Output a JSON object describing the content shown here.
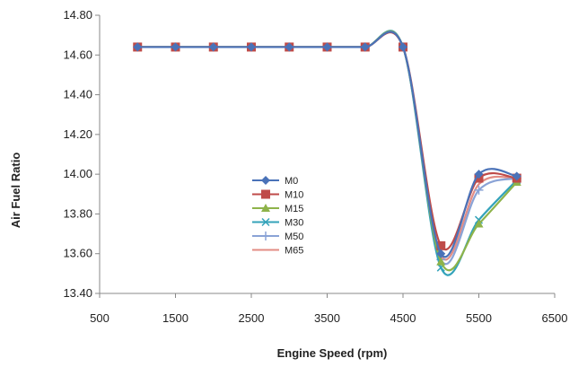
{
  "chart_data": {
    "type": "line",
    "title": "",
    "xlabel": "Engine Speed (rpm)",
    "ylabel": "Air Fuel Ratio",
    "xlim": [
      500,
      6500
    ],
    "ylim": [
      13.4,
      14.8
    ],
    "xticks": [
      500,
      1500,
      2500,
      3500,
      4500,
      5500,
      6500
    ],
    "xtick_labels": [
      "500",
      "1500",
      "2500",
      "3500",
      "4500",
      "5500",
      "6500"
    ],
    "yticks": [
      13.4,
      13.6,
      13.8,
      14.0,
      14.2,
      14.4,
      14.6,
      14.8
    ],
    "ytick_labels": [
      "13.40",
      "13.60",
      "13.80",
      "14.00",
      "14.20",
      "14.40",
      "14.60",
      "14.80"
    ],
    "grid": false,
    "smooth": true,
    "legend_position": "center-left",
    "x": [
      1000,
      1500,
      2000,
      2500,
      3000,
      3500,
      4000,
      4500,
      5000,
      5500,
      6000
    ],
    "series": [
      {
        "name": "M0",
        "color": "#4a72b8",
        "marker": "diamond",
        "values": [
          14.64,
          14.64,
          14.64,
          14.64,
          14.64,
          14.64,
          14.64,
          14.64,
          13.6,
          14.0,
          13.99
        ]
      },
      {
        "name": "M10",
        "color": "#bf4b49",
        "marker": "square",
        "values": [
          14.64,
          14.64,
          14.64,
          14.64,
          14.64,
          14.64,
          14.64,
          14.64,
          13.64,
          13.98,
          13.98
        ]
      },
      {
        "name": "M15",
        "color": "#8eb34a",
        "marker": "triangle",
        "values": [
          14.64,
          14.64,
          14.64,
          14.64,
          14.64,
          14.64,
          14.64,
          14.64,
          13.56,
          13.75,
          13.96
        ]
      },
      {
        "name": "M30",
        "color": "#34a3ba",
        "marker": "x",
        "values": [
          14.64,
          14.64,
          14.64,
          14.64,
          14.64,
          14.64,
          14.64,
          14.64,
          13.53,
          13.77,
          13.97
        ]
      },
      {
        "name": "M50",
        "color": "#8aa3d6",
        "marker": "plus",
        "values": [
          14.64,
          14.64,
          14.64,
          14.64,
          14.64,
          14.64,
          14.64,
          14.64,
          13.57,
          13.92,
          13.98
        ]
      },
      {
        "name": "M65",
        "color": "#e38c84",
        "marker": "none",
        "values": [
          14.64,
          14.64,
          14.64,
          14.64,
          14.64,
          14.64,
          14.64,
          14.64,
          13.59,
          13.95,
          13.98
        ]
      }
    ]
  }
}
